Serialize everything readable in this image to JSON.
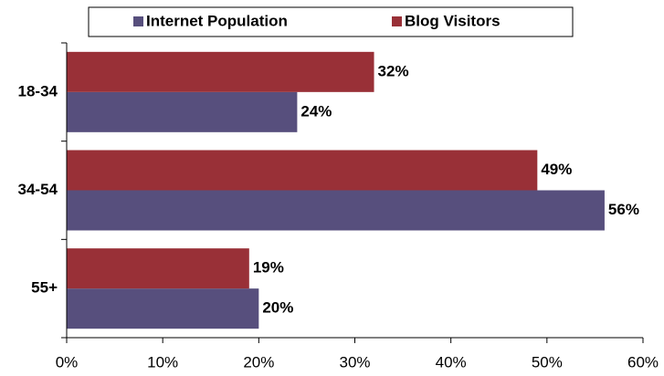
{
  "chart_data": {
    "type": "barh",
    "categories": [
      "18-34",
      "34-54",
      "55+"
    ],
    "series": [
      {
        "name": "Internet Population",
        "color": "#574f7d",
        "values": [
          24,
          56,
          20
        ],
        "value_labels": [
          "24%",
          "56%",
          "20%"
        ]
      },
      {
        "name": "Blog Visitors",
        "color": "#993037",
        "values": [
          32,
          49,
          19
        ],
        "value_labels": [
          "32%",
          "49%",
          "19%"
        ]
      }
    ],
    "xlim": [
      0,
      60
    ],
    "xticks": [
      {
        "value": 0,
        "label": "0%"
      },
      {
        "value": 10,
        "label": "10%"
      },
      {
        "value": 20,
        "label": "20%"
      },
      {
        "value": 30,
        "label": "30%"
      },
      {
        "value": 40,
        "label": "40%"
      },
      {
        "value": 50,
        "label": "50%"
      },
      {
        "value": 60,
        "label": "60%"
      }
    ],
    "grid": false,
    "legend": "top"
  }
}
